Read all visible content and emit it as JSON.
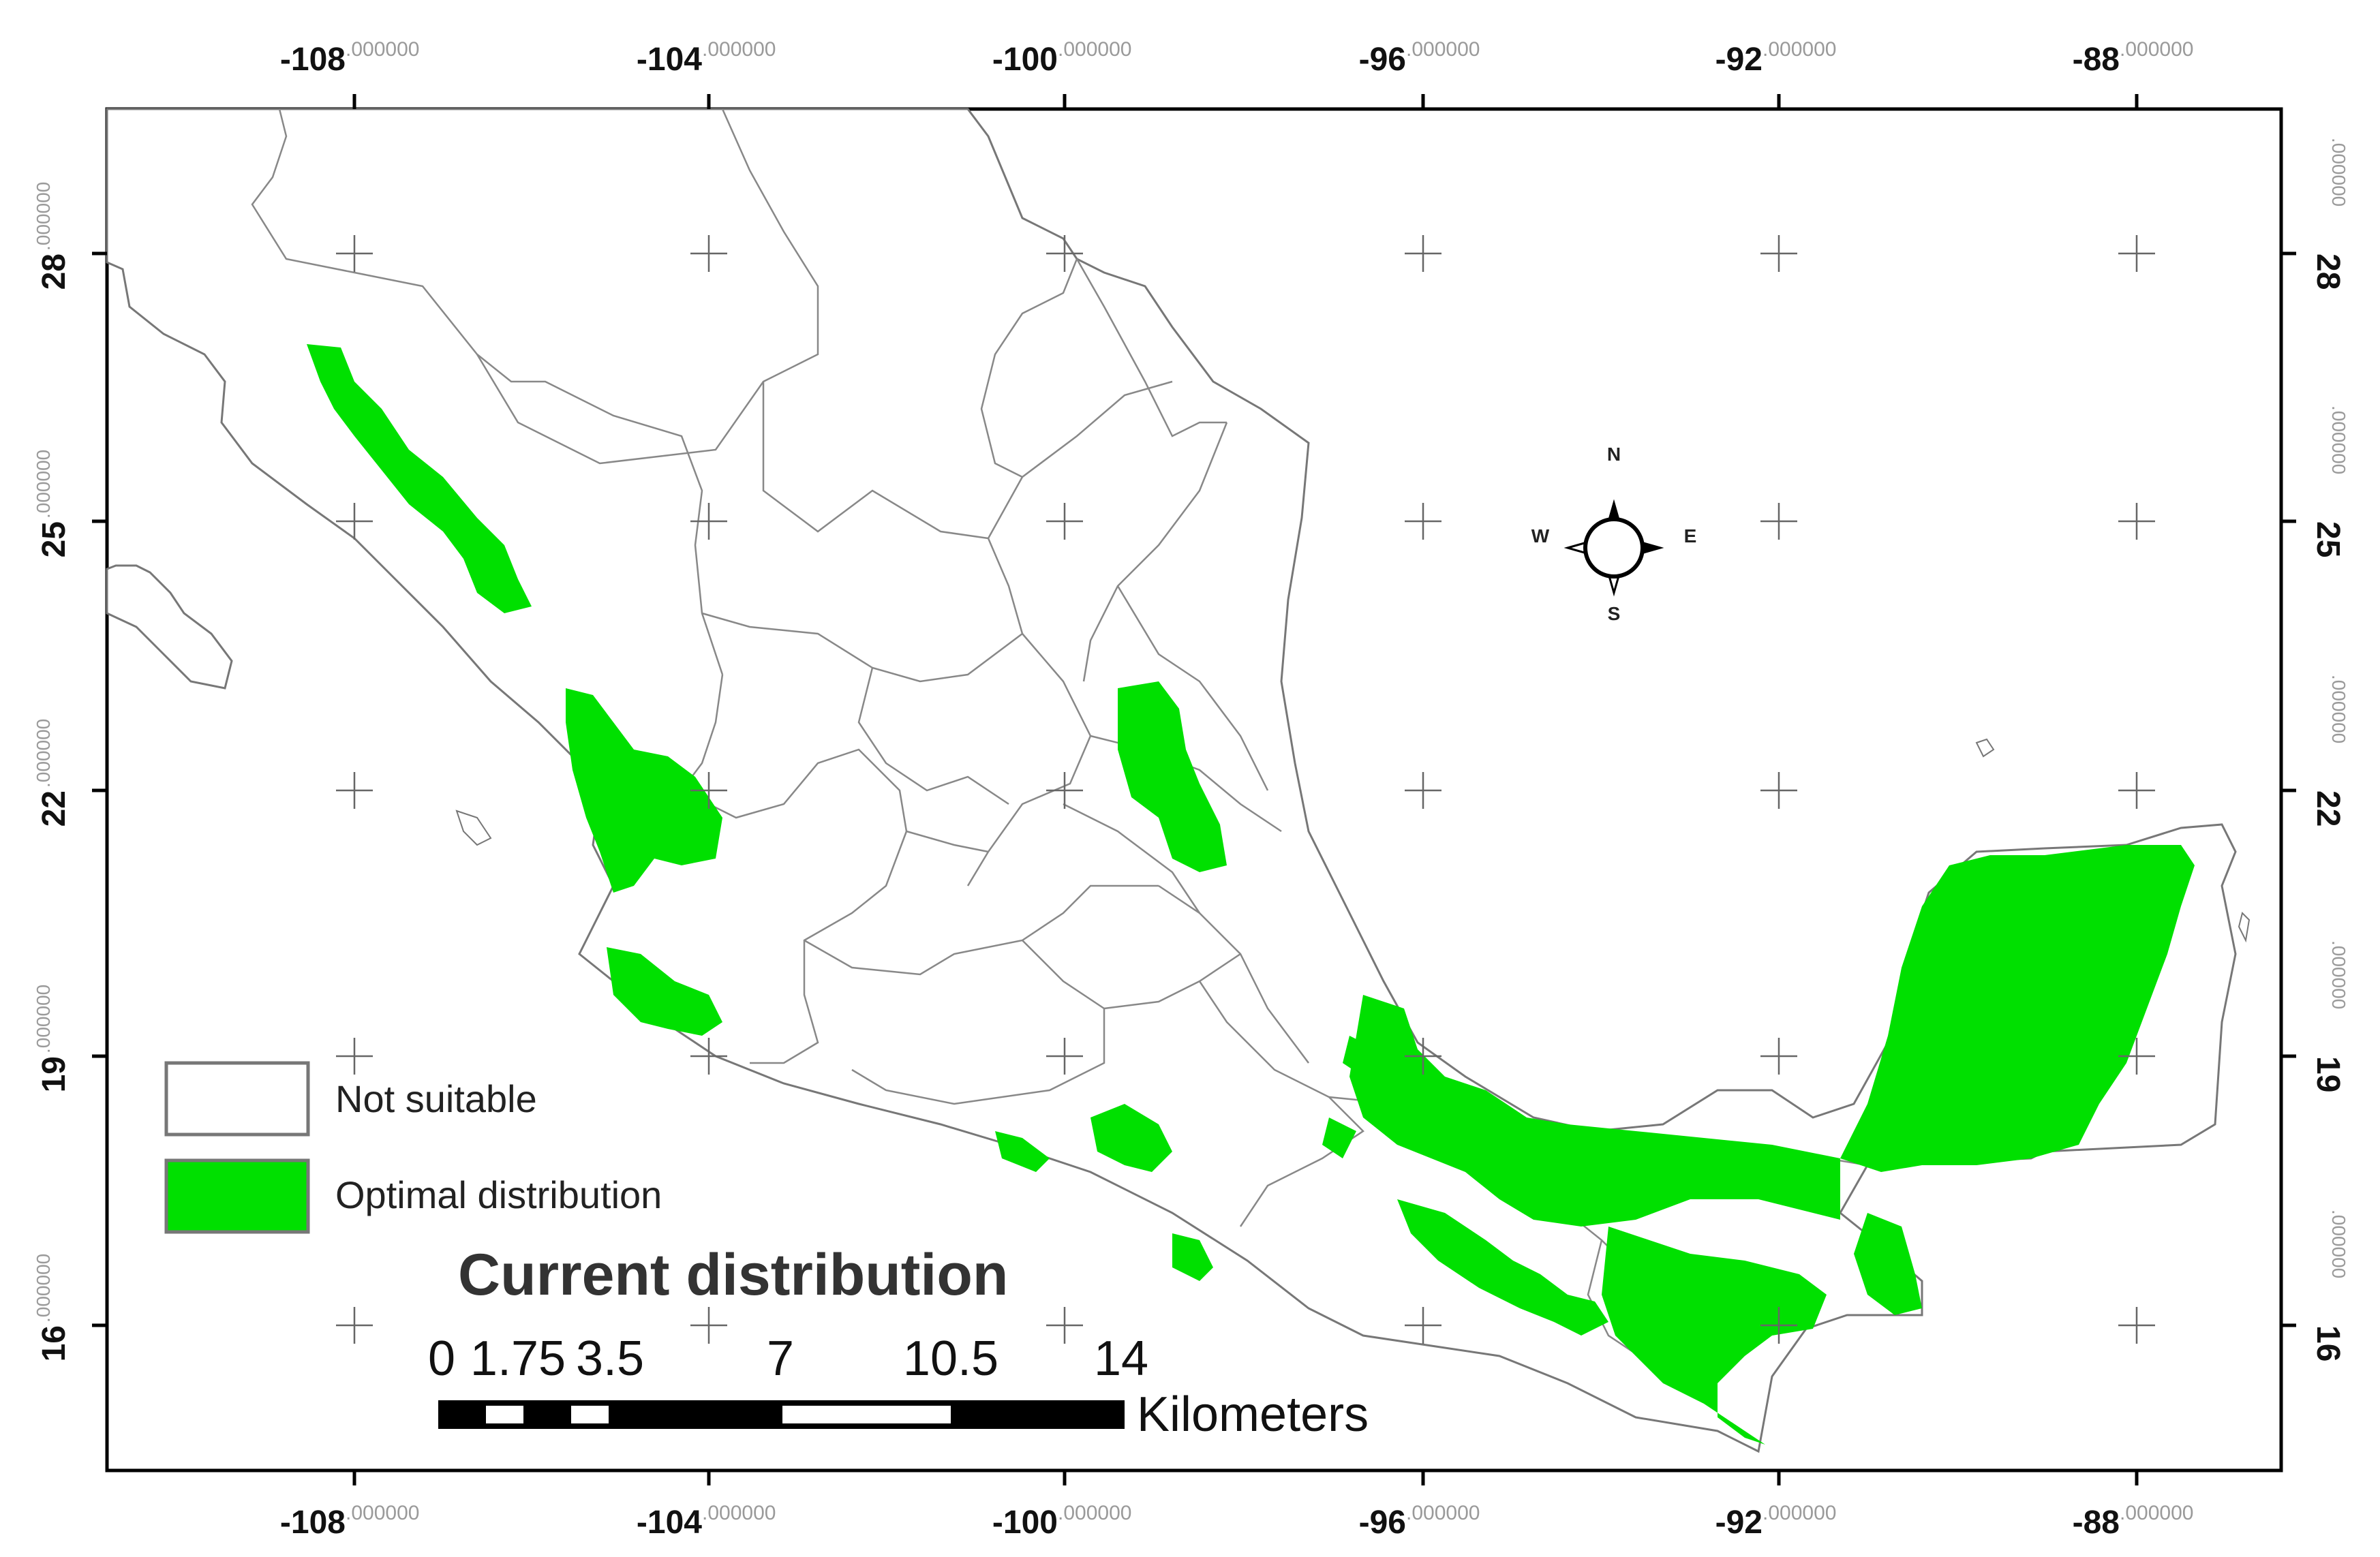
{
  "map": {
    "longitude_ticks": [
      {
        "value": "-108",
        "decimals": ".000000"
      },
      {
        "value": "-104",
        "decimals": ".000000"
      },
      {
        "value": "-100",
        "decimals": ".000000"
      },
      {
        "value": "-96",
        "decimals": ".000000"
      },
      {
        "value": "-92",
        "decimals": ".000000"
      },
      {
        "value": "-88",
        "decimals": ".000000"
      }
    ],
    "latitude_ticks": [
      {
        "value": "28",
        "decimals": ".000000"
      },
      {
        "value": "25",
        "decimals": ".000000"
      },
      {
        "value": "22",
        "decimals": ".000000"
      },
      {
        "value": "19",
        "decimals": ".000000"
      },
      {
        "value": "16",
        "decimals": ".000000"
      }
    ],
    "colors": {
      "suitable": "#00e000",
      "not_suitable": "#ffffff",
      "borders": "#777777",
      "frame": "#000000"
    }
  },
  "legend": {
    "not_suitable_label": "Not suitable",
    "optimal_label": "Optimal distribution"
  },
  "title": "Current distribution",
  "scale_bar": {
    "labels": [
      "0",
      "1.75",
      "3.5",
      "7",
      "10.5",
      "14"
    ],
    "unit": "Kilometers"
  },
  "compass": {
    "n": "N",
    "s": "S",
    "e": "E",
    "w": "W"
  }
}
